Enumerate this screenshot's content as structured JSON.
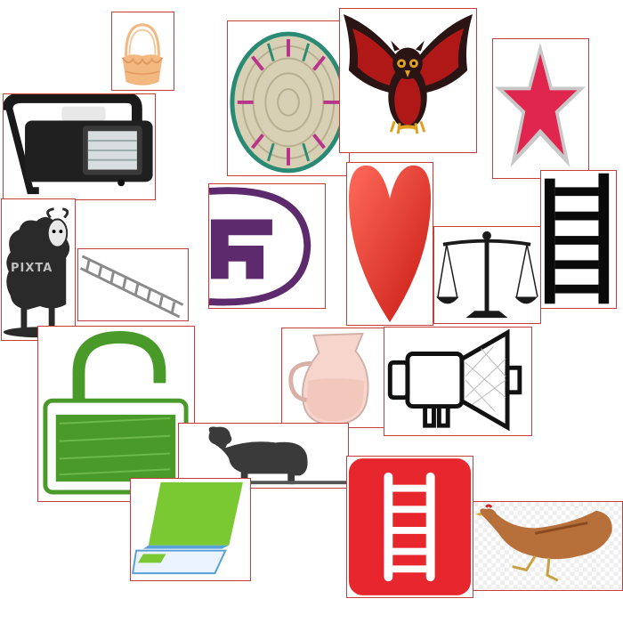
{
  "title": "",
  "tiles": [
    {
      "id": "basket",
      "icon": "basket-icon"
    },
    {
      "id": "woven-plate",
      "icon": "woven-plate-icon"
    },
    {
      "id": "owl",
      "icon": "owl-icon"
    },
    {
      "id": "star",
      "icon": "star-icon"
    },
    {
      "id": "lantern",
      "icon": "lantern-icon"
    },
    {
      "id": "black-sheep",
      "icon": "sheep-icon",
      "watermark": "PIXTA"
    },
    {
      "id": "ladder-diagonal",
      "icon": "ladder-icon"
    },
    {
      "id": "letter-f-logo",
      "icon": "logo-icon"
    },
    {
      "id": "heart",
      "icon": "heart-icon"
    },
    {
      "id": "scales",
      "icon": "scales-icon"
    },
    {
      "id": "ladder-black",
      "icon": "ladder-icon"
    },
    {
      "id": "padlock",
      "icon": "padlock-icon"
    },
    {
      "id": "jug",
      "icon": "jug-icon"
    },
    {
      "id": "megaphone",
      "icon": "megaphone-icon"
    },
    {
      "id": "sheep-silhouette",
      "icon": "sheep-icon"
    },
    {
      "id": "laptop",
      "icon": "laptop-icon"
    },
    {
      "id": "ladder-red-app",
      "icon": "ladder-icon"
    },
    {
      "id": "hen",
      "icon": "hen-icon"
    }
  ],
  "colors": {
    "tile_border": "#c83c3c",
    "heart": "#e8302a",
    "star": "#e0264f",
    "padlock": "#4a9a2a",
    "logo": "#5e2a6e",
    "app_red": "#e8262e",
    "owl_red": "#b01818",
    "basket": "#f2b880",
    "hen": "#b8703a"
  }
}
